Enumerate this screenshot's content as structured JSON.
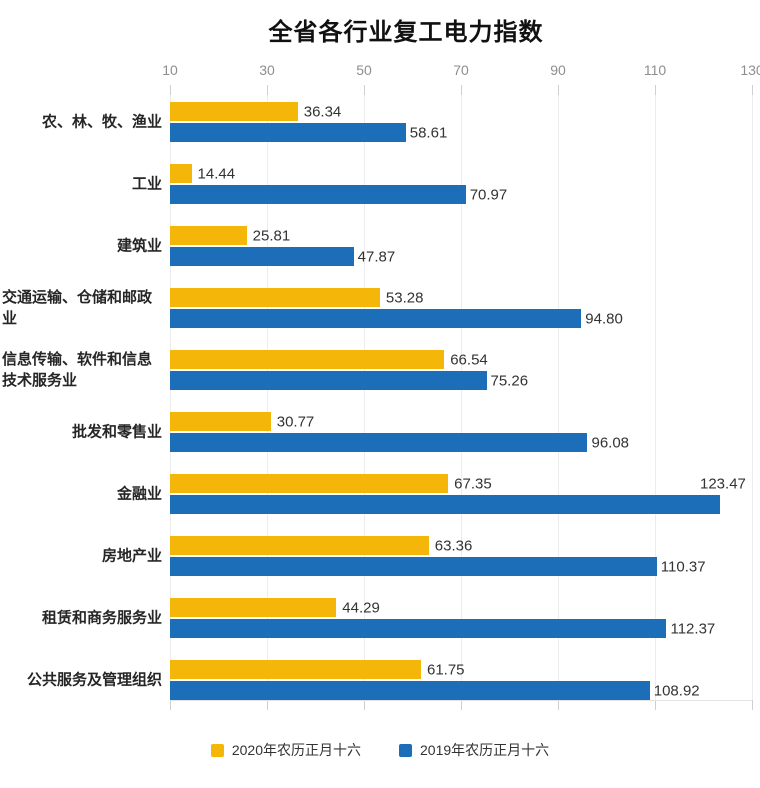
{
  "title": "全省各行业复工电力指数",
  "colors": {
    "series_2020": "#F4B609",
    "series_2019": "#1B6EB7",
    "gridline": "#ededed",
    "tick_mark": "#cfcfcf",
    "axis_label": "#8e8e8e",
    "value_label": "#333333",
    "category_label": "#262626",
    "background": "#ffffff"
  },
  "chart_data": {
    "type": "bar",
    "orientation": "horizontal",
    "title": "全省各行业复工电力指数",
    "categories": [
      "农、林、牧、渔业",
      "工业",
      "建筑业",
      "交通运输、仓储和邮政业",
      "信息传输、软件和信息技术服务业",
      "批发和零售业",
      "金融业",
      "房地产业",
      "租赁和商务服务业",
      "公共服务及管理组织"
    ],
    "series": [
      {
        "name": "2020年农历正月十六",
        "color": "#F4B609",
        "values": [
          36.34,
          14.44,
          25.81,
          53.28,
          66.54,
          30.77,
          67.35,
          63.36,
          44.29,
          61.75
        ]
      },
      {
        "name": "2019年农历正月十六",
        "color": "#1B6EB7",
        "values": [
          58.61,
          70.97,
          47.87,
          94.8,
          75.26,
          96.08,
          123.47,
          110.37,
          112.37,
          108.92
        ]
      }
    ],
    "xlim": [
      10,
      130
    ],
    "x_ticks": [
      10,
      30,
      50,
      70,
      90,
      110,
      130
    ],
    "grid": true,
    "value_labels": true,
    "value_label_decimals": 2,
    "legend_position": "bottom",
    "x_axis_position": "top"
  }
}
